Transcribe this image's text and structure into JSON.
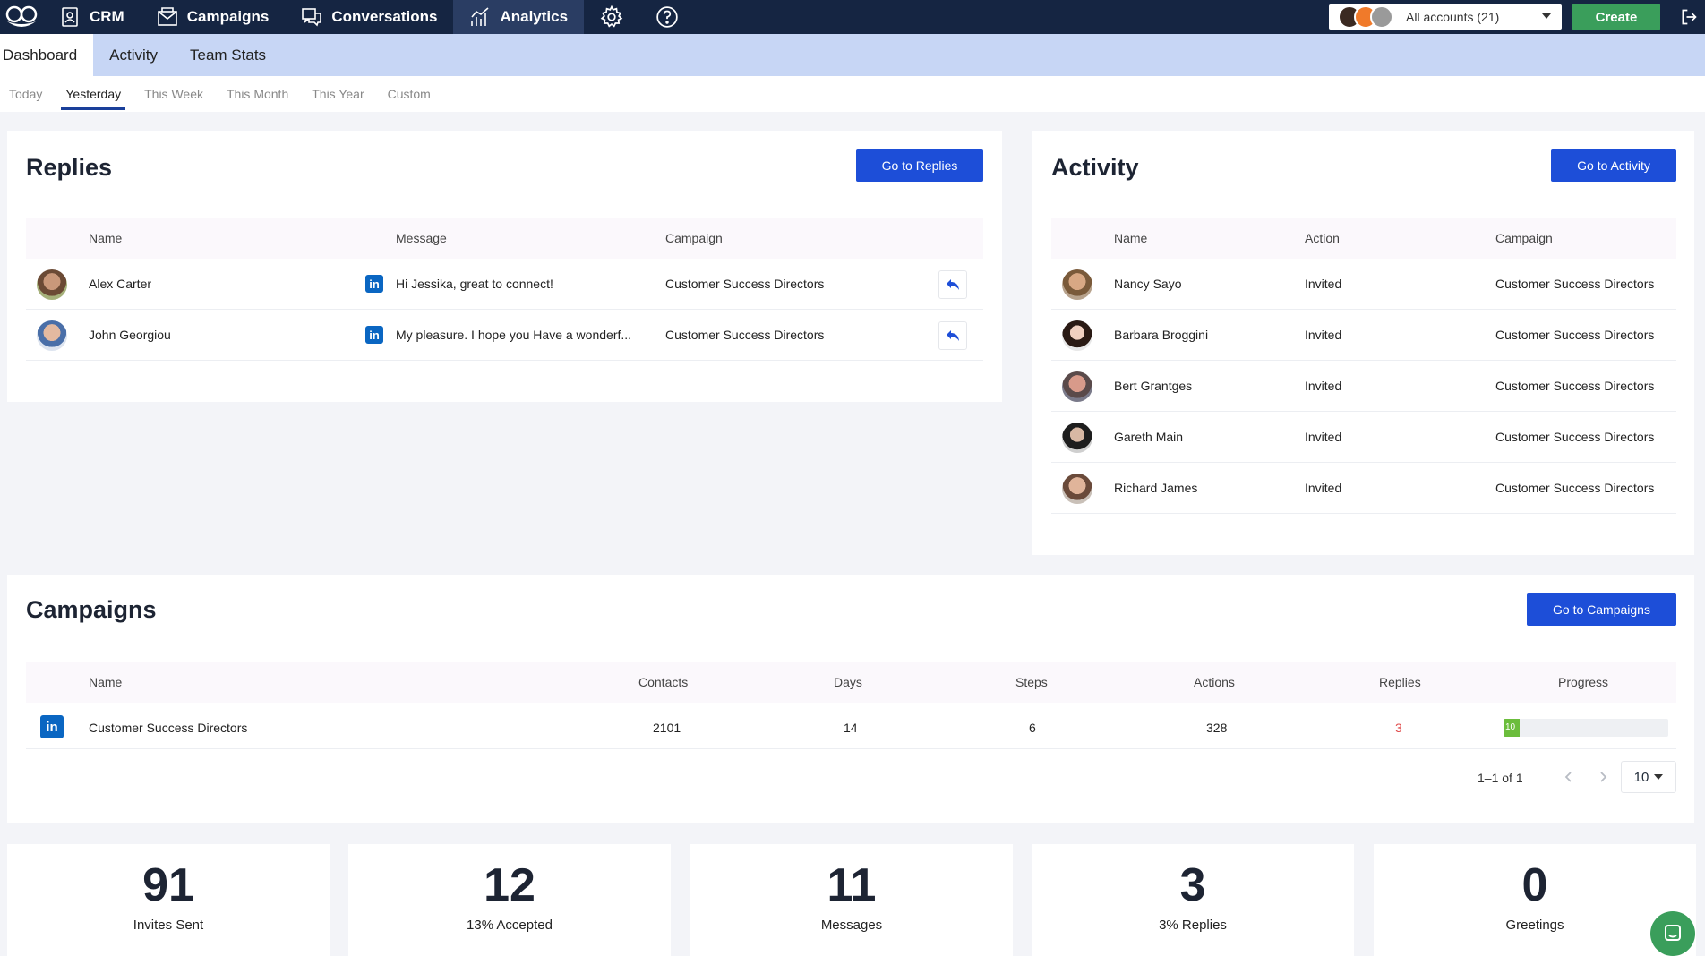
{
  "nav": {
    "items": [
      {
        "label": "CRM",
        "icon": "contact-card-icon"
      },
      {
        "label": "Campaigns",
        "icon": "envelope-icon"
      },
      {
        "label": "Conversations",
        "icon": "chat-bubbles-icon"
      },
      {
        "label": "Analytics",
        "icon": "bar-chart-icon"
      }
    ],
    "account_select": "All accounts (21)",
    "create_label": "Create"
  },
  "subtabs": [
    "Dashboard",
    "Activity",
    "Team Stats"
  ],
  "periods": [
    "Today",
    "Yesterday",
    "This Week",
    "This Month",
    "This Year",
    "Custom"
  ],
  "replies": {
    "title": "Replies",
    "button": "Go to Replies",
    "headers": {
      "name": "Name",
      "message": "Message",
      "campaign": "Campaign"
    },
    "rows": [
      {
        "name": "Alex Carter",
        "message": "Hi Jessika, great to connect!",
        "campaign": "Customer Success Directors"
      },
      {
        "name": "John Georgiou",
        "message": "My pleasure. I hope you Have a wonderf...",
        "campaign": "Customer Success Directors"
      }
    ]
  },
  "activity": {
    "title": "Activity",
    "button": "Go to Activity",
    "headers": {
      "name": "Name",
      "action": "Action",
      "campaign": "Campaign"
    },
    "rows": [
      {
        "name": "Nancy Sayo",
        "action": "Invited",
        "campaign": "Customer Success Directors"
      },
      {
        "name": "Barbara Broggini",
        "action": "Invited",
        "campaign": "Customer Success Directors"
      },
      {
        "name": "Bert Grantges",
        "action": "Invited",
        "campaign": "Customer Success Directors"
      },
      {
        "name": "Gareth Main",
        "action": "Invited",
        "campaign": "Customer Success Directors"
      },
      {
        "name": "Richard James",
        "action": "Invited",
        "campaign": "Customer Success Directors"
      }
    ]
  },
  "campaigns": {
    "title": "Campaigns",
    "button": "Go to Campaigns",
    "headers": {
      "name": "Name",
      "contacts": "Contacts",
      "days": "Days",
      "steps": "Steps",
      "actions": "Actions",
      "replies": "Replies",
      "progress": "Progress"
    },
    "rows": [
      {
        "name": "Customer Success Directors",
        "contacts": "2101",
        "days": "14",
        "steps": "6",
        "actions": "328",
        "replies": "3",
        "progress_label": "10",
        "progress_fraction": 0.1
      }
    ],
    "pager": "1–1 of 1",
    "page_size": "10"
  },
  "stats": [
    {
      "value": "91",
      "label": "Invites Sent"
    },
    {
      "value": "12",
      "label": "13% Accepted"
    },
    {
      "value": "11",
      "label": "Messages"
    },
    {
      "value": "3",
      "label": "3% Replies"
    },
    {
      "value": "0",
      "label": "Greetings"
    }
  ],
  "colors": {
    "nav_bg": "#152542",
    "primary": "#1d4ed8",
    "create": "#3a9e5b",
    "linkedin": "#0a66c2",
    "reply_count": "#e04b4b",
    "progress": "#6bbd3c"
  }
}
